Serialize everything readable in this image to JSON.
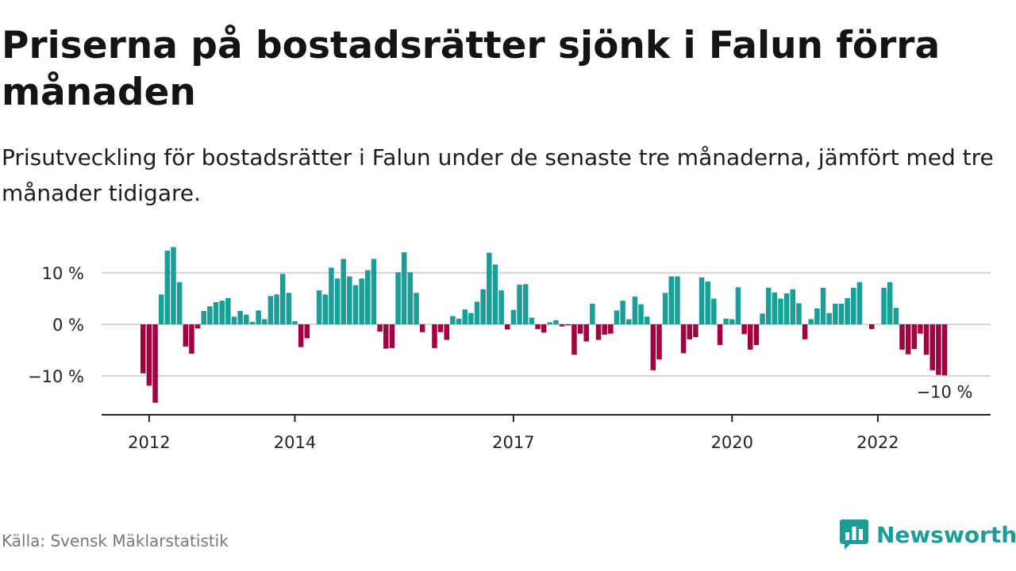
{
  "title": "Priserna på bostadsrätter sjönk i Falun förra månaden",
  "subtitle": "Prisutveckling för bostadsrätter i Falun under de senaste tre månaderna, jämfört med tre månader tidigare.",
  "source": "Källa: Svensk Mäklarstatistik",
  "brand": {
    "name": "Newsworthy",
    "logo_icon": "newsworthy-bar-chart-icon"
  },
  "colors": {
    "positive": "#1a9e97",
    "negative": "#a10040",
    "grid": "#d6d6d6",
    "axis": "#222222"
  },
  "chart_data": {
    "type": "bar",
    "title": "",
    "xlabel": "",
    "ylabel": "",
    "ylim": [
      -17,
      14
    ],
    "x_start": "2011-12",
    "x_ticks": [
      {
        "value": "2012-01",
        "label": "2012"
      },
      {
        "value": "2014-01",
        "label": "2014"
      },
      {
        "value": "2017-01",
        "label": "2017"
      },
      {
        "value": "2020-01",
        "label": "2020"
      },
      {
        "value": "2022-01",
        "label": "2022"
      }
    ],
    "y_ticks": [
      {
        "value": 10,
        "label": "10 %"
      },
      {
        "value": 0,
        "label": "0 %"
      },
      {
        "value": -10,
        "label": "−10 %"
      }
    ],
    "grid": true,
    "last_value_label": "−10 %",
    "series": [
      {
        "values": [
          -9.5,
          -11.9,
          -15.2,
          5.8,
          14.3,
          15.0,
          8.2,
          -4.3,
          -5.7,
          -0.8,
          2.6,
          3.5,
          4.3,
          4.6,
          5.1,
          1.5,
          2.6,
          1.9,
          0.5,
          2.7,
          1.0,
          5.5,
          5.8,
          9.8,
          6.1,
          0.6,
          -4.4,
          -2.7,
          0,
          6.6,
          5.8,
          11.0,
          8.9,
          12.7,
          9.3,
          7.6,
          8.9,
          10.5,
          12.7,
          -1.4,
          -4.7,
          -4.6,
          10.1,
          14.0,
          10.1,
          6.1,
          -1.5,
          0,
          -4.6,
          -1.5,
          -3.0,
          1.6,
          1.1,
          2.9,
          2.2,
          4.4,
          6.8,
          13.9,
          11.6,
          6.6,
          -1.0,
          2.8,
          7.7,
          7.8,
          1.3,
          -0.9,
          -1.6,
          0.4,
          0.8,
          -0.4,
          -0.2,
          -5.9,
          -1.8,
          -3.3,
          4.0,
          -3.0,
          -2.0,
          -1.8,
          2.7,
          4.6,
          1.0,
          5.4,
          3.9,
          1.5,
          -8.9,
          -6.8,
          6.1,
          9.3,
          9.3,
          -5.6,
          -2.9,
          -2.5,
          9.1,
          8.3,
          5.0,
          -4.0,
          1.1,
          1.0,
          7.2,
          -1.9,
          -4.9,
          -4.0,
          2.1,
          7.1,
          6.2,
          5.0,
          6.0,
          6.8,
          4.1,
          -2.9,
          1.0,
          3.1,
          7.1,
          2.2,
          4.0,
          4.0,
          5.1,
          7.1,
          8.2,
          0,
          -0.9,
          0,
          7.1,
          8.2,
          3.2,
          -4.9,
          -5.8,
          -4.8,
          -1.8,
          -5.9,
          -8.9,
          -9.8,
          -9.9
        ]
      }
    ]
  }
}
